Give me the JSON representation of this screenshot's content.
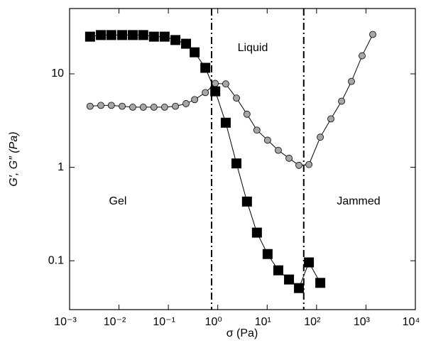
{
  "chart_data": {
    "type": "scatter",
    "xlabel": "σ (Pa)",
    "ylabel": "G′, G″ (Pa)",
    "xscale": "log",
    "yscale": "log",
    "xlim": [
      0.001,
      10000
    ],
    "xticks": [
      {
        "value": 0.001,
        "label": "10⁻³"
      },
      {
        "value": 0.01,
        "label": "10⁻²"
      },
      {
        "value": 0.1,
        "label": "10⁻¹"
      },
      {
        "value": 1,
        "label": "10⁰"
      },
      {
        "value": 10,
        "label": "10¹"
      },
      {
        "value": 100,
        "label": "10²"
      },
      {
        "value": 1000,
        "label": "10³"
      },
      {
        "value": 10000,
        "label": "10⁴"
      }
    ],
    "ylim": [
      0.03,
      50
    ],
    "yticks": [
      0.1,
      1,
      10
    ],
    "vlines": [
      0.75,
      55
    ],
    "annotations": [
      "Liquid",
      "Gel",
      "Jammed"
    ],
    "series": [
      {
        "marker": "square",
        "color": "#000000",
        "x": [
          0.0026,
          0.0043,
          0.007,
          0.0116,
          0.019,
          0.031,
          0.051,
          0.084,
          0.139,
          0.228,
          0.34,
          0.56,
          0.89,
          1.45,
          2.39,
          3.9,
          6.2,
          10.2,
          16.8,
          27.7,
          44,
          70,
          119
        ],
        "values": [
          25,
          26,
          26,
          26,
          26,
          26,
          25,
          25,
          23,
          21,
          17,
          11.6,
          6.5,
          3.0,
          1.1,
          0.43,
          0.2,
          0.118,
          0.079,
          0.063,
          0.051,
          0.096,
          0.058
        ]
      },
      {
        "marker": "circle",
        "color": "#a6a6a6",
        "x": [
          0.0026,
          0.0043,
          0.007,
          0.0116,
          0.019,
          0.031,
          0.051,
          0.084,
          0.139,
          0.228,
          0.34,
          0.56,
          0.89,
          1.45,
          2.39,
          3.9,
          6.2,
          10.2,
          16.8,
          27.7,
          44,
          70,
          119,
          195,
          321,
          508,
          836,
          1374
        ],
        "values": [
          4.5,
          4.6,
          4.6,
          4.5,
          4.4,
          4.4,
          4.4,
          4.4,
          4.5,
          4.8,
          5.3,
          6.3,
          7.9,
          7.8,
          5.5,
          3.7,
          2.5,
          1.95,
          1.52,
          1.25,
          1.05,
          1.07,
          2.1,
          3.3,
          5.1,
          8.3,
          15.6,
          26.4
        ]
      }
    ]
  }
}
